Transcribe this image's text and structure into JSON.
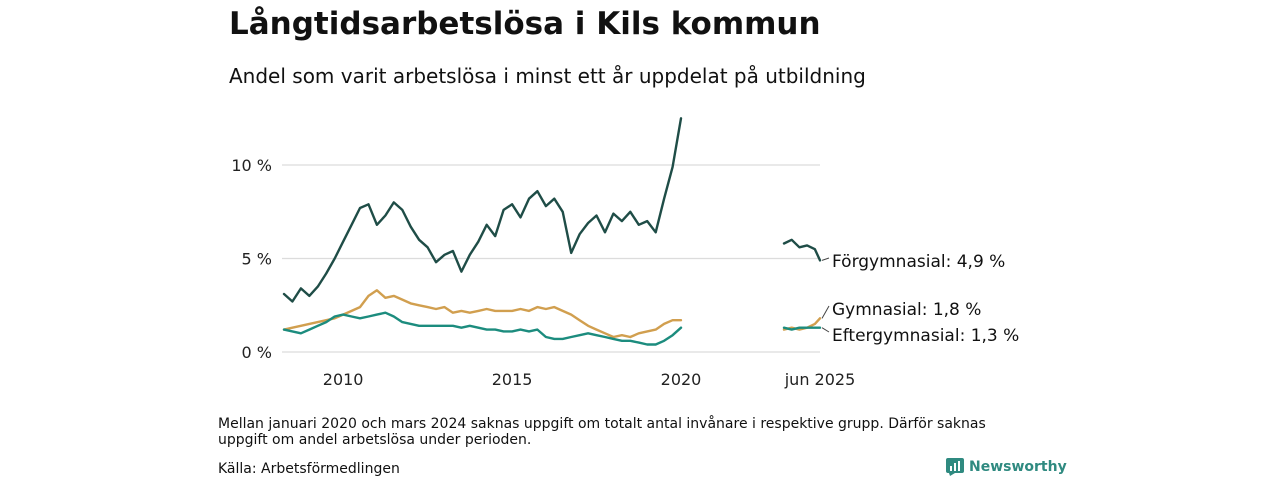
{
  "title": "Långtidsarbetslösa i Kils kommun",
  "subtitle": "Andel som varit arbetslösa i minst ett år uppdelat på utbildning",
  "note": "Mellan januari 2020 och mars 2024 saknas uppgift om totalt antal invånare i respektive grupp. Därför saknas uppgift om andel arbetslösa under perioden.",
  "source": "Källa: Arbetsförmedlingen",
  "brand": "Newsworthy",
  "brand_icon": "bar-chart-logo-icon",
  "chart_data": {
    "type": "line",
    "title": "Långtidsarbetslösa i Kils kommun",
    "subtitle": "Andel som varit arbetslösa i minst ett år uppdelat på utbildning",
    "ylim": [
      0,
      13
    ],
    "y_ticks": [
      0,
      5,
      10
    ],
    "y_tick_labels": [
      "0 %",
      "5 %",
      "10 %"
    ],
    "grid": true,
    "x_axis": {
      "historic_range": [
        "2008-04",
        "2020-01"
      ],
      "recent_range": [
        "2024-04",
        "2025-06"
      ],
      "tick_labels": [
        {
          "label": "2010",
          "date": "2010-01"
        },
        {
          "label": "2015",
          "date": "2015-01"
        },
        {
          "label": "2020",
          "date": "2020-01"
        },
        {
          "label": "jun 2025",
          "date": "2025-06"
        }
      ]
    },
    "series": [
      {
        "name": "Förgymnasial",
        "end_label": "Förgymnasial: 4,9 %",
        "color": "#1f4d47",
        "anchors": [
          [
            "2008-04",
            3.1
          ],
          [
            "2008-07",
            2.7
          ],
          [
            "2008-10",
            3.4
          ],
          [
            "2009-01",
            3.0
          ],
          [
            "2009-04",
            3.5
          ],
          [
            "2009-07",
            4.2
          ],
          [
            "2009-10",
            5.0
          ],
          [
            "2010-01",
            5.9
          ],
          [
            "2010-04",
            6.8
          ],
          [
            "2010-07",
            7.7
          ],
          [
            "2010-10",
            7.9
          ],
          [
            "2011-01",
            6.8
          ],
          [
            "2011-04",
            7.3
          ],
          [
            "2011-07",
            8.0
          ],
          [
            "2011-10",
            7.6
          ],
          [
            "2012-01",
            6.7
          ],
          [
            "2012-04",
            6.0
          ],
          [
            "2012-07",
            5.6
          ],
          [
            "2012-10",
            4.8
          ],
          [
            "2013-01",
            5.2
          ],
          [
            "2013-04",
            5.4
          ],
          [
            "2013-07",
            4.3
          ],
          [
            "2013-10",
            5.2
          ],
          [
            "2014-01",
            5.9
          ],
          [
            "2014-04",
            6.8
          ],
          [
            "2014-07",
            6.2
          ],
          [
            "2014-10",
            7.6
          ],
          [
            "2015-01",
            7.9
          ],
          [
            "2015-04",
            7.2
          ],
          [
            "2015-07",
            8.2
          ],
          [
            "2015-10",
            8.6
          ],
          [
            "2016-01",
            7.8
          ],
          [
            "2016-04",
            8.2
          ],
          [
            "2016-07",
            7.5
          ],
          [
            "2016-10",
            5.3
          ],
          [
            "2017-01",
            6.3
          ],
          [
            "2017-04",
            6.9
          ],
          [
            "2017-07",
            7.3
          ],
          [
            "2017-10",
            6.4
          ],
          [
            "2018-01",
            7.4
          ],
          [
            "2018-04",
            7.0
          ],
          [
            "2018-07",
            7.5
          ],
          [
            "2018-10",
            6.8
          ],
          [
            "2019-01",
            7.0
          ],
          [
            "2019-04",
            6.4
          ],
          [
            "2019-07",
            8.2
          ],
          [
            "2019-10",
            9.9
          ],
          [
            "2020-01",
            12.5
          ],
          [
            "2024-04",
            5.8
          ],
          [
            "2024-07",
            6.0
          ],
          [
            "2024-10",
            5.6
          ],
          [
            "2025-01",
            5.7
          ],
          [
            "2025-04",
            5.5
          ],
          [
            "2025-06",
            4.9
          ]
        ]
      },
      {
        "name": "Gymnasial",
        "end_label": "Gymnasial: 1,8 %",
        "color": "#d19f4f",
        "anchors": [
          [
            "2008-04",
            1.2
          ],
          [
            "2008-07",
            1.3
          ],
          [
            "2008-10",
            1.4
          ],
          [
            "2009-01",
            1.5
          ],
          [
            "2009-04",
            1.6
          ],
          [
            "2009-07",
            1.7
          ],
          [
            "2009-10",
            1.8
          ],
          [
            "2010-01",
            2.0
          ],
          [
            "2010-04",
            2.2
          ],
          [
            "2010-07",
            2.4
          ],
          [
            "2010-10",
            3.0
          ],
          [
            "2011-01",
            3.3
          ],
          [
            "2011-04",
            2.9
          ],
          [
            "2011-07",
            3.0
          ],
          [
            "2011-10",
            2.8
          ],
          [
            "2012-01",
            2.6
          ],
          [
            "2012-04",
            2.5
          ],
          [
            "2012-07",
            2.4
          ],
          [
            "2012-10",
            2.3
          ],
          [
            "2013-01",
            2.4
          ],
          [
            "2013-04",
            2.1
          ],
          [
            "2013-07",
            2.2
          ],
          [
            "2013-10",
            2.1
          ],
          [
            "2014-01",
            2.2
          ],
          [
            "2014-04",
            2.3
          ],
          [
            "2014-07",
            2.2
          ],
          [
            "2014-10",
            2.2
          ],
          [
            "2015-01",
            2.2
          ],
          [
            "2015-04",
            2.3
          ],
          [
            "2015-07",
            2.2
          ],
          [
            "2015-10",
            2.4
          ],
          [
            "2016-01",
            2.3
          ],
          [
            "2016-04",
            2.4
          ],
          [
            "2016-07",
            2.2
          ],
          [
            "2016-10",
            2.0
          ],
          [
            "2017-01",
            1.7
          ],
          [
            "2017-04",
            1.4
          ],
          [
            "2017-07",
            1.2
          ],
          [
            "2017-10",
            1.0
          ],
          [
            "2018-01",
            0.8
          ],
          [
            "2018-04",
            0.9
          ],
          [
            "2018-07",
            0.8
          ],
          [
            "2018-10",
            1.0
          ],
          [
            "2019-01",
            1.1
          ],
          [
            "2019-04",
            1.2
          ],
          [
            "2019-07",
            1.5
          ],
          [
            "2019-10",
            1.7
          ],
          [
            "2020-01",
            1.7
          ],
          [
            "2024-04",
            1.2
          ],
          [
            "2024-07",
            1.3
          ],
          [
            "2024-10",
            1.2
          ],
          [
            "2025-01",
            1.3
          ],
          [
            "2025-04",
            1.5
          ],
          [
            "2025-06",
            1.8
          ]
        ]
      },
      {
        "name": "Eftergymnasial",
        "end_label": "Eftergymnasial: 1,3 %",
        "color": "#1c8c7e",
        "anchors": [
          [
            "2008-04",
            1.2
          ],
          [
            "2008-07",
            1.1
          ],
          [
            "2008-10",
            1.0
          ],
          [
            "2009-01",
            1.2
          ],
          [
            "2009-04",
            1.4
          ],
          [
            "2009-07",
            1.6
          ],
          [
            "2009-10",
            1.9
          ],
          [
            "2010-01",
            2.0
          ],
          [
            "2010-04",
            1.9
          ],
          [
            "2010-07",
            1.8
          ],
          [
            "2010-10",
            1.9
          ],
          [
            "2011-01",
            2.0
          ],
          [
            "2011-04",
            2.1
          ],
          [
            "2011-07",
            1.9
          ],
          [
            "2011-10",
            1.6
          ],
          [
            "2012-01",
            1.5
          ],
          [
            "2012-04",
            1.4
          ],
          [
            "2012-07",
            1.4
          ],
          [
            "2012-10",
            1.4
          ],
          [
            "2013-01",
            1.4
          ],
          [
            "2013-04",
            1.4
          ],
          [
            "2013-07",
            1.3
          ],
          [
            "2013-10",
            1.4
          ],
          [
            "2014-01",
            1.3
          ],
          [
            "2014-04",
            1.2
          ],
          [
            "2014-07",
            1.2
          ],
          [
            "2014-10",
            1.1
          ],
          [
            "2015-01",
            1.1
          ],
          [
            "2015-04",
            1.2
          ],
          [
            "2015-07",
            1.1
          ],
          [
            "2015-10",
            1.2
          ],
          [
            "2016-01",
            0.8
          ],
          [
            "2016-04",
            0.7
          ],
          [
            "2016-07",
            0.7
          ],
          [
            "2016-10",
            0.8
          ],
          [
            "2017-01",
            0.9
          ],
          [
            "2017-04",
            1.0
          ],
          [
            "2017-07",
            0.9
          ],
          [
            "2017-10",
            0.8
          ],
          [
            "2018-01",
            0.7
          ],
          [
            "2018-04",
            0.6
          ],
          [
            "2018-07",
            0.6
          ],
          [
            "2018-10",
            0.5
          ],
          [
            "2019-01",
            0.4
          ],
          [
            "2019-04",
            0.4
          ],
          [
            "2019-07",
            0.6
          ],
          [
            "2019-10",
            0.9
          ],
          [
            "2020-01",
            1.3
          ],
          [
            "2024-04",
            1.3
          ],
          [
            "2024-07",
            1.2
          ],
          [
            "2024-10",
            1.3
          ],
          [
            "2025-01",
            1.3
          ],
          [
            "2025-04",
            1.3
          ],
          [
            "2025-06",
            1.3
          ]
        ]
      }
    ]
  }
}
